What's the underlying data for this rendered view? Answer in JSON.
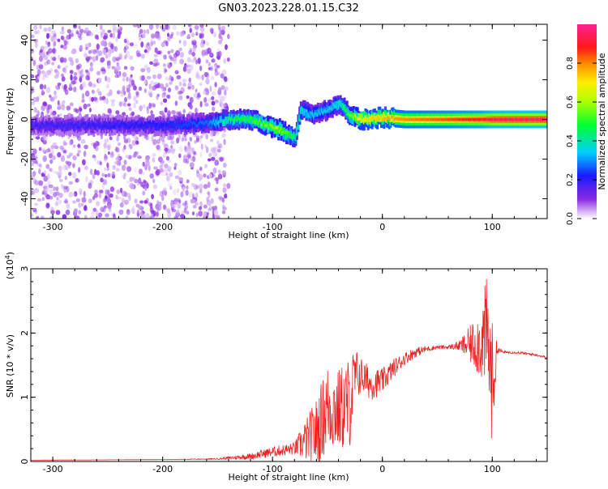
{
  "figure_title": "GN03.2023.228.01.15.C32",
  "colorbar": {
    "label": "Normalized spectral amplitude",
    "ticks": [
      "0.0",
      "0.2",
      "0.4",
      "0.6",
      "0.8"
    ],
    "tick_values": [
      0.0,
      0.2,
      0.4,
      0.6,
      0.8
    ],
    "range": [
      0,
      1
    ],
    "colormap": "rainbow (white-violet-blue-cyan-green-yellow-red-magenta)"
  },
  "chart_data": [
    {
      "type": "heatmap",
      "title": "",
      "xlabel": "Height of straight line (km)",
      "ylabel": "Frequency (Hz)",
      "xlim": [
        -320,
        150
      ],
      "ylim": [
        -50,
        48
      ],
      "x_ticks": [
        "-300",
        "-200",
        "-100",
        "0",
        "100"
      ],
      "x_tick_values": [
        -300,
        -200,
        -100,
        0,
        100
      ],
      "y_ticks": [
        "40",
        "20",
        "0",
        "-20",
        "-40"
      ],
      "y_tick_values": [
        40,
        20,
        0,
        -20,
        -40
      ],
      "noise_region_x": [
        -320,
        -140
      ],
      "noise_amplitude": 0.25,
      "ridge": [
        {
          "x": -320,
          "f": -3,
          "amp": 0.18
        },
        {
          "x": -260,
          "f": -3,
          "amp": 0.2
        },
        {
          "x": -200,
          "f": -3,
          "amp": 0.22
        },
        {
          "x": -160,
          "f": -2,
          "amp": 0.28
        },
        {
          "x": -140,
          "f": 0,
          "amp": 0.45
        },
        {
          "x": -120,
          "f": 0,
          "amp": 0.5
        },
        {
          "x": -110,
          "f": -2,
          "amp": 0.55
        },
        {
          "x": -95,
          "f": -5,
          "amp": 0.6
        },
        {
          "x": -80,
          "f": -9,
          "amp": 0.45
        },
        {
          "x": -75,
          "f": 5,
          "amp": 0.4
        },
        {
          "x": -65,
          "f": 2,
          "amp": 0.35
        },
        {
          "x": -50,
          "f": 5,
          "amp": 0.35
        },
        {
          "x": -40,
          "f": 8,
          "amp": 0.4
        },
        {
          "x": -30,
          "f": 2,
          "amp": 0.55
        },
        {
          "x": -20,
          "f": 0,
          "amp": 0.7
        },
        {
          "x": 0,
          "f": 1,
          "amp": 0.75
        },
        {
          "x": 20,
          "f": 0,
          "amp": 0.8
        },
        {
          "x": 60,
          "f": 0,
          "amp": 0.85
        },
        {
          "x": 90,
          "f": 0,
          "amp": 0.9
        },
        {
          "x": 100,
          "f": 0,
          "amp": 0.95
        },
        {
          "x": 150,
          "f": 0,
          "amp": 0.97
        }
      ]
    },
    {
      "type": "line",
      "title": "",
      "xlabel": "Height of straight line (km)",
      "ylabel": "SNR (10 * v/v)",
      "y_multiplier_label": "(x10",
      "y_multiplier_exp": "4",
      "y_multiplier_close": ")",
      "xlim": [
        -320,
        150
      ],
      "ylim": [
        0,
        3
      ],
      "x_ticks": [
        "-300",
        "-200",
        "-100",
        "0",
        "100"
      ],
      "x_tick_values": [
        -300,
        -200,
        -100,
        0,
        100
      ],
      "y_ticks": [
        "0",
        "1",
        "2",
        "3"
      ],
      "y_tick_values": [
        0,
        1,
        2,
        3
      ],
      "line_color": "#ee2222",
      "series": [
        {
          "x": [
            -320,
            -200,
            -150,
            -120,
            -100,
            -80,
            -60,
            -50,
            -40,
            -30,
            -25,
            -20,
            -10,
            0,
            10,
            20,
            30,
            40,
            50,
            60,
            70,
            80,
            90,
            95,
            100,
            105,
            110,
            120,
            130,
            140,
            150
          ],
          "y": [
            0.02,
            0.03,
            0.04,
            0.08,
            0.15,
            0.2,
            0.45,
            0.85,
            0.8,
            0.9,
            1.3,
            1.35,
            1.2,
            1.25,
            1.45,
            1.6,
            1.7,
            1.75,
            1.78,
            1.78,
            1.8,
            1.82,
            1.85,
            2.0,
            1.2,
            1.75,
            1.7,
            1.7,
            1.68,
            1.66,
            1.62
          ],
          "jitter": [
            0.0,
            0.0,
            0.01,
            0.05,
            0.08,
            0.1,
            0.55,
            0.7,
            0.65,
            0.75,
            0.5,
            0.3,
            0.25,
            0.2,
            0.15,
            0.1,
            0.08,
            0.05,
            0.03,
            0.03,
            0.08,
            0.3,
            0.6,
            0.9,
            1.0,
            0.05,
            0.02,
            0.02,
            0.02,
            0.02,
            0.02
          ]
        }
      ]
    }
  ]
}
